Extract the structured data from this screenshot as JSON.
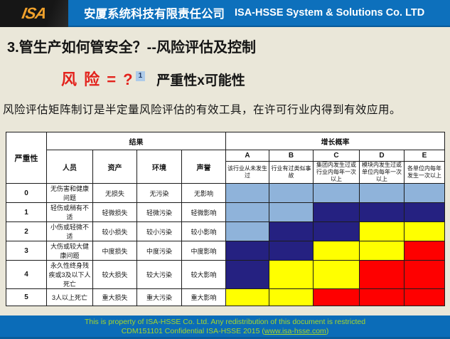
{
  "header": {
    "logo_text": "ISA",
    "company_cn": "安厦系统科技有限责任公司",
    "company_en": "ISA-HSSE  System & Solutions Co. LTD"
  },
  "title": "3.管生产如何管安全？--风险评估及控制",
  "formula": {
    "risk_text": "风 险 = ?",
    "footnote": "1",
    "rest_text": "严重性x可能性"
  },
  "intro": "风险评估矩阵制订是半定量风险评估的有效工具，在许可行业内得到有效应用。",
  "matrix": {
    "severity_header": "严重性",
    "consequence_header": "结果",
    "probability_header": "增长概率",
    "consequence_columns": [
      "人员",
      "资产",
      "环境",
      "声誉"
    ],
    "probability_columns": [
      {
        "letter": "A",
        "desc": "该行业从未发生过"
      },
      {
        "letter": "B",
        "desc": "行业有过类似事故"
      },
      {
        "letter": "C",
        "desc": "集团内发生过或行业内每年一次以上"
      },
      {
        "letter": "D",
        "desc": "模块内发生过或单位内每年一次以上"
      },
      {
        "letter": "E",
        "desc": "各单位内每年发生一次以上"
      }
    ],
    "rows": [
      {
        "severity": "0",
        "people": "无伤害和健康问题",
        "asset": "无损失",
        "environment": "无污染",
        "reputation": "无影响",
        "cells": [
          "lightblue",
          "lightblue",
          "lightblue",
          "lightblue",
          "lightblue"
        ]
      },
      {
        "severity": "1",
        "people": "轻伤或稍有不适",
        "asset": "轻微损失",
        "environment": "轻微污染",
        "reputation": "轻微影响",
        "cells": [
          "lightblue",
          "lightblue",
          "darkblue",
          "darkblue",
          "darkblue"
        ]
      },
      {
        "severity": "2",
        "people": "小伤或轻微不适",
        "asset": "较小损失",
        "environment": "较小污染",
        "reputation": "较小影响",
        "cells": [
          "lightblue",
          "darkblue",
          "darkblue",
          "yellow",
          "yellow"
        ]
      },
      {
        "severity": "3",
        "people": "大伤或较大健康问题",
        "asset": "中度损失",
        "environment": "中度污染",
        "reputation": "中度影响",
        "cells": [
          "darkblue",
          "darkblue",
          "yellow",
          "yellow",
          "red"
        ]
      },
      {
        "severity": "4",
        "people": "永久性终身残疾或3及以下人死亡",
        "asset": "较大损失",
        "environment": "较大污染",
        "reputation": "较大影响",
        "cells": [
          "darkblue",
          "yellow",
          "yellow",
          "red",
          "red"
        ]
      },
      {
        "severity": "5",
        "people": "3人以上死亡",
        "asset": "重大损失",
        "environment": "重大污染",
        "reputation": "重大影响",
        "cells": [
          "yellow",
          "yellow",
          "red",
          "red",
          "red"
        ]
      }
    ],
    "colors": {
      "lightblue": "#8fb3da",
      "darkblue": "#252181",
      "yellow": "#ffff00",
      "red": "#fe0000"
    }
  },
  "footer": {
    "line1": "This is property of ISA-HSSE Co. Ltd. Any redistribution of this document is restricted",
    "line2_prefix": "CDM151101 Confidential   ISA-HSSE 2015  (",
    "line2_link": "www.isa-hsse.com",
    "line2_suffix": ")"
  }
}
